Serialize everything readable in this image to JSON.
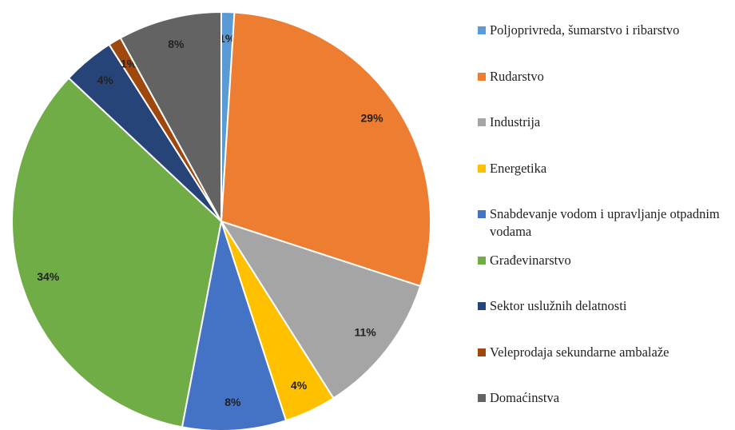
{
  "chart_data": {
    "type": "pie",
    "categories": [
      "Poljoprivreda, šumarstvo i ribarstvo",
      "Rudarstvo",
      "Industrija",
      "Energetika",
      "Snabdevanje vodom i upravljanje otpadnim vodama",
      "Građevinarstvo",
      "Sektor uslužnih delatnosti",
      "Veleprodaja sekundarne ambalaže",
      "Domaćinstva"
    ],
    "values": [
      1,
      29,
      11,
      4,
      8,
      34,
      4,
      1,
      8
    ],
    "value_labels": [
      "1%",
      "29%",
      "11%",
      "4%",
      "8%",
      "34%",
      "4%",
      "1%",
      "8%"
    ],
    "colors": [
      "#5b9bd5",
      "#ed7d31",
      "#a5a5a5",
      "#ffc000",
      "#4472c4",
      "#70ad47",
      "#264478",
      "#9e480e",
      "#636363"
    ],
    "legend": "right"
  }
}
